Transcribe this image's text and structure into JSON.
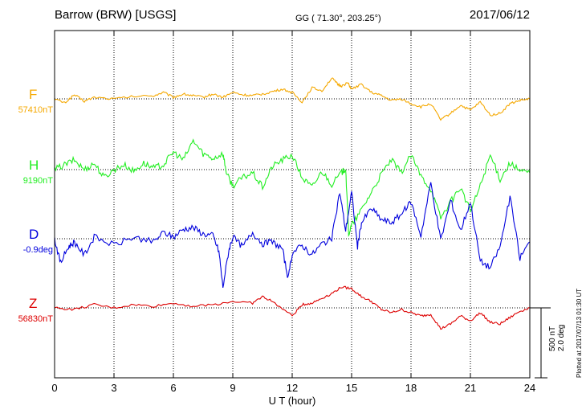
{
  "header": {
    "station": "Barrow (BRW)  [USGS]",
    "coords": "GG ( 71.30°, 203.25°)",
    "date": "2017/06/12"
  },
  "scale_label": [
    "500 nT",
    "2.0 deg"
  ],
  "plotted_note": "Plotted at 2017/07/13 01:30 UT",
  "chart_data": {
    "type": "line",
    "xlabel": "U T (hour)",
    "xlim": [
      0,
      24
    ],
    "xticks": [
      0,
      3,
      6,
      9,
      12,
      15,
      18,
      21,
      24
    ],
    "grid": true,
    "series": [
      {
        "name": "F",
        "baseline_label": "57410nT",
        "color": "#f5a800",
        "unit": "nT",
        "points": [
          [
            0,
            0
          ],
          [
            0.5,
            -5
          ],
          [
            1,
            5
          ],
          [
            1.5,
            -3
          ],
          [
            2,
            2
          ],
          [
            3,
            0
          ],
          [
            4,
            3
          ],
          [
            5,
            4
          ],
          [
            5.5,
            8
          ],
          [
            6,
            2
          ],
          [
            6.5,
            6
          ],
          [
            7,
            4
          ],
          [
            7.5,
            2
          ],
          [
            8,
            6
          ],
          [
            8.5,
            2
          ],
          [
            9,
            8
          ],
          [
            9.5,
            5
          ],
          [
            10,
            4
          ],
          [
            10.5,
            6
          ],
          [
            11,
            9
          ],
          [
            11.5,
            12
          ],
          [
            12,
            8
          ],
          [
            12.5,
            -4
          ],
          [
            13,
            14
          ],
          [
            13.5,
            10
          ],
          [
            14,
            26
          ],
          [
            14.3,
            18
          ],
          [
            14.5,
            16
          ],
          [
            14.8,
            20
          ],
          [
            15,
            12
          ],
          [
            15.5,
            18
          ],
          [
            16,
            8
          ],
          [
            16.5,
            4
          ],
          [
            17,
            -2
          ],
          [
            17.5,
            0
          ],
          [
            18,
            -6
          ],
          [
            18.5,
            -10
          ],
          [
            19,
            -6
          ],
          [
            19.5,
            -26
          ],
          [
            20,
            -18
          ],
          [
            20.5,
            -8
          ],
          [
            21,
            -14
          ],
          [
            21.5,
            -4
          ],
          [
            22,
            -20
          ],
          [
            22.5,
            -18
          ],
          [
            23,
            -6
          ],
          [
            23.5,
            -2
          ],
          [
            24,
            0
          ]
        ]
      },
      {
        "name": "H",
        "baseline_label": "9190nT",
        "color": "#22ee22",
        "unit": "nT",
        "points": [
          [
            0,
            0
          ],
          [
            0.5,
            6
          ],
          [
            1,
            12
          ],
          [
            1.5,
            0
          ],
          [
            2,
            8
          ],
          [
            2.5,
            -10
          ],
          [
            3,
            0
          ],
          [
            3.5,
            6
          ],
          [
            4,
            -2
          ],
          [
            4.5,
            8
          ],
          [
            5,
            2
          ],
          [
            5.5,
            6
          ],
          [
            6,
            22
          ],
          [
            6.5,
            12
          ],
          [
            7,
            36
          ],
          [
            7.5,
            20
          ],
          [
            8,
            14
          ],
          [
            8.5,
            20
          ],
          [
            8.7,
            -6
          ],
          [
            9,
            -20
          ],
          [
            9.5,
            -10
          ],
          [
            10,
            -4
          ],
          [
            10.5,
            -22
          ],
          [
            11,
            4
          ],
          [
            11.5,
            12
          ],
          [
            12,
            18
          ],
          [
            12.5,
            -10
          ],
          [
            13,
            -22
          ],
          [
            13.5,
            -2
          ],
          [
            14,
            -18
          ],
          [
            14.5,
            -4
          ],
          [
            14.7,
            2
          ],
          [
            14.85,
            -80
          ],
          [
            15,
            -70
          ],
          [
            15.5,
            -50
          ],
          [
            16,
            -28
          ],
          [
            16.5,
            -6
          ],
          [
            17,
            12
          ],
          [
            17.5,
            -4
          ],
          [
            18,
            18
          ],
          [
            18.5,
            -8
          ],
          [
            19,
            -24
          ],
          [
            19.5,
            -60
          ],
          [
            20,
            -40
          ],
          [
            20.5,
            -22
          ],
          [
            21,
            -52
          ],
          [
            21.5,
            -20
          ],
          [
            22,
            18
          ],
          [
            22.5,
            -12
          ],
          [
            23,
            8
          ],
          [
            23.5,
            -2
          ],
          [
            24,
            -4
          ]
        ]
      },
      {
        "name": "D",
        "baseline_label": "-0.9deg",
        "color": "#0000dd",
        "unit": "deg",
        "points": [
          [
            0,
            0
          ],
          [
            0.3,
            -30
          ],
          [
            0.7,
            -10
          ],
          [
            1,
            -4
          ],
          [
            1.5,
            -20
          ],
          [
            2,
            2
          ],
          [
            3,
            -8
          ],
          [
            4,
            2
          ],
          [
            5,
            -4
          ],
          [
            5.5,
            8
          ],
          [
            6,
            2
          ],
          [
            6.5,
            12
          ],
          [
            7,
            14
          ],
          [
            7.5,
            6
          ],
          [
            8,
            4
          ],
          [
            8.3,
            -16
          ],
          [
            8.5,
            -60
          ],
          [
            8.8,
            -14
          ],
          [
            9,
            2
          ],
          [
            9.5,
            -10
          ],
          [
            10,
            8
          ],
          [
            10.5,
            -6
          ],
          [
            11,
            -4
          ],
          [
            11.5,
            -12
          ],
          [
            11.8,
            -50
          ],
          [
            12,
            -18
          ],
          [
            12.5,
            -8
          ],
          [
            13,
            -20
          ],
          [
            13.5,
            -6
          ],
          [
            14,
            0
          ],
          [
            14.4,
            58
          ],
          [
            14.7,
            10
          ],
          [
            15,
            58
          ],
          [
            15.3,
            -10
          ],
          [
            15.5,
            20
          ],
          [
            16,
            38
          ],
          [
            16.5,
            24
          ],
          [
            17,
            20
          ],
          [
            17.5,
            30
          ],
          [
            18,
            46
          ],
          [
            18.5,
            4
          ],
          [
            19,
            70
          ],
          [
            19.5,
            -2
          ],
          [
            20,
            48
          ],
          [
            20.5,
            10
          ],
          [
            21,
            46
          ],
          [
            21.5,
            -28
          ],
          [
            22,
            -36
          ],
          [
            22.5,
            -10
          ],
          [
            23,
            52
          ],
          [
            23.5,
            -24
          ],
          [
            24,
            -4
          ]
        ]
      },
      {
        "name": "Z",
        "baseline_label": "56830nT",
        "color": "#dd0000",
        "unit": "nT",
        "points": [
          [
            0,
            0
          ],
          [
            1,
            -2
          ],
          [
            2,
            4
          ],
          [
            3,
            0
          ],
          [
            4,
            4
          ],
          [
            5,
            2
          ],
          [
            6,
            6
          ],
          [
            7,
            2
          ],
          [
            8,
            4
          ],
          [
            9,
            8
          ],
          [
            10,
            6
          ],
          [
            10.5,
            14
          ],
          [
            11,
            8
          ],
          [
            12,
            -10
          ],
          [
            12.5,
            4
          ],
          [
            13,
            6
          ],
          [
            13.5,
            12
          ],
          [
            14,
            18
          ],
          [
            14.5,
            26
          ],
          [
            15,
            24
          ],
          [
            15.5,
            14
          ],
          [
            16,
            8
          ],
          [
            16.5,
            -2
          ],
          [
            17,
            -6
          ],
          [
            17.5,
            -2
          ],
          [
            18,
            -6
          ],
          [
            18.5,
            -10
          ],
          [
            19,
            -8
          ],
          [
            19.5,
            -26
          ],
          [
            20,
            -20
          ],
          [
            20.5,
            -10
          ],
          [
            21,
            -16
          ],
          [
            21.5,
            -6
          ],
          [
            22,
            -18
          ],
          [
            22.5,
            -20
          ],
          [
            23,
            -12
          ],
          [
            23.5,
            -4
          ],
          [
            24,
            0
          ]
        ]
      }
    ]
  }
}
